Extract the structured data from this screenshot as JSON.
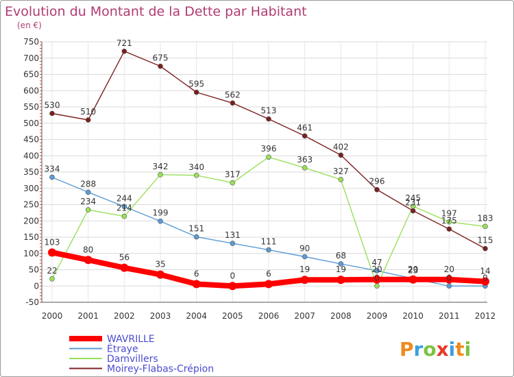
{
  "chart_data": {
    "type": "line",
    "title": "Evolution du Montant de la Dette par Habitant",
    "subtitle": "(en €)",
    "xlabel": "",
    "ylabel": "",
    "x": [
      2000,
      2001,
      2002,
      2003,
      2004,
      2005,
      2006,
      2007,
      2008,
      2009,
      2010,
      2011,
      2012
    ],
    "ylim": [
      -50,
      750
    ],
    "yticks": [
      -50,
      0,
      50,
      100,
      150,
      200,
      250,
      300,
      350,
      400,
      450,
      500,
      550,
      600,
      650,
      700,
      750
    ],
    "grid": true,
    "legend_position": "bottom-left",
    "series": [
      {
        "name": "WAVRILLE",
        "color": "#ff0000",
        "values": [
          103,
          80,
          56,
          35,
          6,
          0,
          6,
          19,
          19,
          20,
          20,
          20,
          14
        ]
      },
      {
        "name": "Étraye",
        "color": "#5b9bd5",
        "values": [
          334,
          288,
          244,
          199,
          151,
          131,
          111,
          90,
          68,
          47,
          23,
          0,
          0
        ]
      },
      {
        "name": "Damvillers",
        "color": "#99e05a",
        "values": [
          22,
          234,
          214,
          342,
          340,
          317,
          396,
          363,
          327,
          0,
          245,
          197,
          183
        ]
      },
      {
        "name": "Moirey-Flabas-Crépion",
        "color": "#7b2020",
        "values": [
          530,
          510,
          721,
          675,
          595,
          562,
          513,
          461,
          402,
          296,
          231,
          175,
          115
        ]
      }
    ]
  },
  "logo": {
    "text": "Proxiti"
  }
}
